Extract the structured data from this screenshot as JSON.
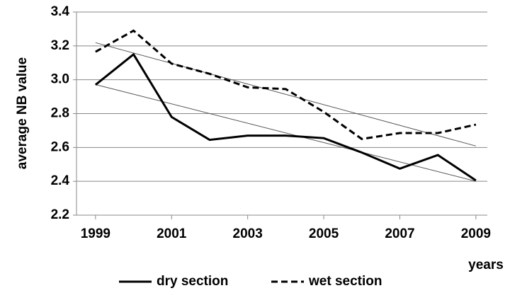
{
  "chart_data": {
    "type": "line",
    "x": [
      1999,
      2000,
      2001,
      2002,
      2003,
      2004,
      2005,
      2006,
      2007,
      2008,
      2009
    ],
    "series": [
      {
        "name": "dry section",
        "color": "#000000",
        "dash": false,
        "values": [
          2.97,
          3.15,
          2.78,
          2.645,
          2.67,
          2.67,
          2.655,
          2.57,
          2.475,
          2.555,
          2.405
        ]
      },
      {
        "name": "wet section",
        "color": "#000000",
        "dash": true,
        "values": [
          3.165,
          3.29,
          3.095,
          3.035,
          2.955,
          2.945,
          2.81,
          2.65,
          2.685,
          2.685,
          2.735
        ]
      }
    ],
    "y_label": "average NB value",
    "x_label": "years",
    "xlim": [
      1998.5,
      2009.3
    ],
    "xticks": [
      1999,
      2001,
      2003,
      2005,
      2007,
      2009
    ],
    "ylim": [
      2.2,
      3.4
    ],
    "yticks": [
      {
        "value": 2.2,
        "label": "2.2"
      },
      {
        "value": 2.4,
        "label": "2.4"
      },
      {
        "value": 2.6,
        "label": "2.6"
      },
      {
        "value": 2.8,
        "label": "2.8"
      },
      {
        "value": 3.0,
        "label": "3.0"
      },
      {
        "value": 3.2,
        "label": "3.2"
      },
      {
        "value": 3.4,
        "label": "3.4"
      }
    ],
    "grid": true,
    "trendline": true,
    "legend": "bottom"
  }
}
